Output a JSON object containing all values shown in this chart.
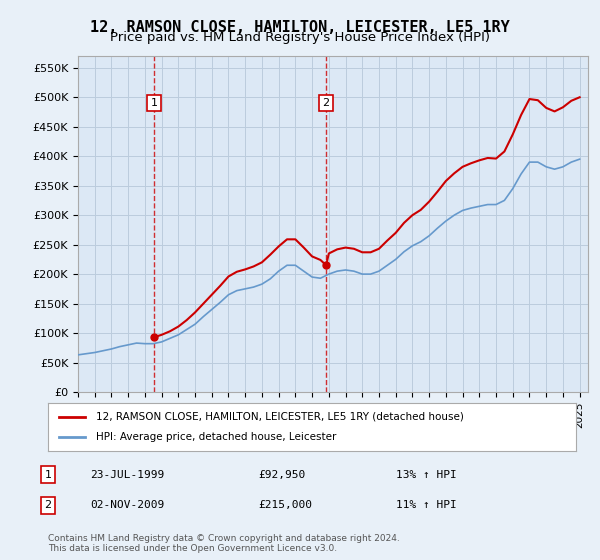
{
  "title": "12, RAMSON CLOSE, HAMILTON, LEICESTER, LE5 1RY",
  "subtitle": "Price paid vs. HM Land Registry's House Price Index (HPI)",
  "background_color": "#e8f0f8",
  "plot_bg_color": "#dce8f5",
  "legend_label_red": "12, RAMSON CLOSE, HAMILTON, LEICESTER, LE5 1RY (detached house)",
  "legend_label_blue": "HPI: Average price, detached house, Leicester",
  "footnote": "Contains HM Land Registry data © Crown copyright and database right 2024.\nThis data is licensed under the Open Government Licence v3.0.",
  "sale_points": [
    {
      "label": "1",
      "date_x": 1999.55,
      "price": 92950
    },
    {
      "label": "2",
      "date_x": 2009.84,
      "price": 215000
    }
  ],
  "sale_annotations": [
    {
      "num": "1",
      "date": "23-JUL-1999",
      "price": "£92,950",
      "hpi": "13% ↑ HPI"
    },
    {
      "num": "2",
      "date": "02-NOV-2009",
      "price": "£215,000",
      "hpi": "11% ↑ HPI"
    }
  ],
  "hpi_line": {
    "x": [
      1995,
      1995.5,
      1996,
      1996.5,
      1997,
      1997.5,
      1998,
      1998.5,
      1999,
      1999.5,
      2000,
      2000.5,
      2001,
      2001.5,
      2002,
      2002.5,
      2003,
      2003.5,
      2004,
      2004.5,
      2005,
      2005.5,
      2006,
      2006.5,
      2007,
      2007.5,
      2008,
      2008.5,
      2009,
      2009.5,
      2010,
      2010.5,
      2011,
      2011.5,
      2012,
      2012.5,
      2013,
      2013.5,
      2014,
      2014.5,
      2015,
      2015.5,
      2016,
      2016.5,
      2017,
      2017.5,
      2018,
      2018.5,
      2019,
      2019.5,
      2020,
      2020.5,
      2021,
      2021.5,
      2022,
      2022.5,
      2023,
      2023.5,
      2024,
      2024.5,
      2025
    ],
    "y": [
      63000,
      65000,
      67000,
      70000,
      73000,
      77000,
      80000,
      83000,
      82000,
      82000,
      85000,
      91000,
      97000,
      106000,
      115000,
      128000,
      140000,
      152000,
      165000,
      172000,
      175000,
      178000,
      183000,
      192000,
      205000,
      215000,
      215000,
      205000,
      195000,
      193000,
      200000,
      205000,
      207000,
      205000,
      200000,
      200000,
      205000,
      215000,
      225000,
      238000,
      248000,
      255000,
      265000,
      278000,
      290000,
      300000,
      308000,
      312000,
      315000,
      318000,
      318000,
      325000,
      345000,
      370000,
      390000,
      390000,
      382000,
      378000,
      382000,
      390000,
      395000
    ]
  },
  "price_line": {
    "x": [
      1999.55,
      2000,
      2000.5,
      2001,
      2001.5,
      2002,
      2002.5,
      2003,
      2003.5,
      2004,
      2004.5,
      2005,
      2005.5,
      2006,
      2006.5,
      2007,
      2007.5,
      2008,
      2008.5,
      2009,
      2009.5,
      2009.84,
      2010,
      2010.5,
      2011,
      2011.5,
      2012,
      2012.5,
      2013,
      2013.5,
      2014,
      2014.5,
      2015,
      2015.5,
      2016,
      2016.5,
      2017,
      2017.5,
      2018,
      2018.5,
      2019,
      2019.5,
      2020,
      2020.5,
      2021,
      2021.5,
      2022,
      2022.5,
      2023,
      2023.5,
      2024,
      2024.5,
      2025
    ],
    "y": [
      92950,
      97000,
      103000,
      111000,
      122000,
      135000,
      150000,
      165000,
      180000,
      196000,
      204000,
      208000,
      213000,
      220000,
      233000,
      247000,
      259000,
      259000,
      245000,
      230000,
      224000,
      215000,
      235000,
      242000,
      245000,
      243000,
      237000,
      237000,
      243000,
      257000,
      270000,
      287000,
      300000,
      309000,
      323000,
      340000,
      358000,
      371000,
      382000,
      388000,
      393000,
      397000,
      396000,
      408000,
      437000,
      470000,
      497000,
      495000,
      482000,
      476000,
      483000,
      494000,
      500000
    ]
  },
  "ylim": [
    0,
    570000
  ],
  "xlim": [
    1995,
    2025.5
  ],
  "yticks": [
    0,
    50000,
    100000,
    150000,
    200000,
    250000,
    300000,
    350000,
    400000,
    450000,
    500000,
    550000
  ],
  "xticks": [
    1995,
    1996,
    1997,
    1998,
    1999,
    2000,
    2001,
    2002,
    2003,
    2004,
    2005,
    2006,
    2007,
    2008,
    2009,
    2010,
    2011,
    2012,
    2013,
    2014,
    2015,
    2016,
    2017,
    2018,
    2019,
    2020,
    2021,
    2022,
    2023,
    2024,
    2025
  ],
  "red_color": "#cc0000",
  "blue_color": "#6699cc",
  "vline_color": "#cc0000",
  "grid_color": "#bbccdd",
  "title_fontsize": 11,
  "subtitle_fontsize": 9.5
}
